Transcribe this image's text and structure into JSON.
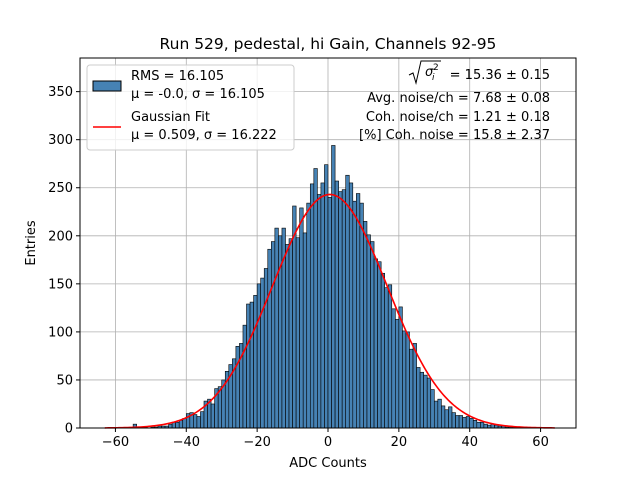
{
  "chart_data": {
    "type": "bar",
    "title": "Run 529, pedestal, hi Gain, Channels 92-95",
    "xlabel": "ADC Counts",
    "ylabel": "Entries",
    "xlim": [
      -70,
      70
    ],
    "ylim": [
      0,
      385
    ],
    "xticks": [
      -60,
      -40,
      -20,
      0,
      20,
      40,
      60
    ],
    "yticks": [
      0,
      50,
      100,
      150,
      200,
      250,
      300,
      350
    ],
    "grid": true,
    "bin_width": 1,
    "bar_color": "#4682b4",
    "fit_color": "#ff0000",
    "histogram": {
      "bin_lefts": [
        -63,
        -62,
        -61,
        -60,
        -59,
        -58,
        -57,
        -56,
        -55,
        -54,
        -53,
        -52,
        -51,
        -50,
        -49,
        -48,
        -47,
        -46,
        -45,
        -44,
        -43,
        -42,
        -41,
        -40,
        -39,
        -38,
        -37,
        -36,
        -35,
        -34,
        -33,
        -32,
        -31,
        -30,
        -29,
        -28,
        -27,
        -26,
        -25,
        -24,
        -23,
        -22,
        -21,
        -20,
        -19,
        -18,
        -17,
        -16,
        -15,
        -14,
        -13,
        -12,
        -11,
        -10,
        -9,
        -8,
        -7,
        -6,
        -5,
        -4,
        -3,
        -2,
        -1,
        0,
        1,
        2,
        3,
        4,
        5,
        6,
        7,
        8,
        9,
        10,
        11,
        12,
        13,
        14,
        15,
        16,
        17,
        18,
        19,
        20,
        21,
        22,
        23,
        24,
        25,
        26,
        27,
        28,
        29,
        30,
        31,
        32,
        33,
        34,
        35,
        36,
        37,
        38,
        39,
        40,
        41,
        42,
        43,
        44,
        45,
        46,
        47,
        48,
        49,
        50,
        51,
        52,
        53,
        54,
        55,
        56,
        57,
        58,
        59,
        60,
        61,
        62,
        63
      ],
      "counts": [
        0,
        0,
        0,
        0,
        0,
        0,
        0,
        0,
        4,
        1,
        0,
        1,
        0,
        1,
        1,
        2,
        2,
        2,
        4,
        6,
        6,
        8,
        10,
        15,
        16,
        14,
        12,
        17,
        28,
        30,
        25,
        41,
        43,
        50,
        59,
        66,
        72,
        85,
        88,
        107,
        129,
        131,
        138,
        150,
        156,
        166,
        186,
        194,
        208,
        200,
        208,
        191,
        197,
        231,
        198,
        229,
        203,
        234,
        254,
        270,
        243,
        255,
        274,
        240,
        294,
        257,
        246,
        248,
        263,
        255,
        236,
        244,
        234,
        215,
        201,
        194,
        176,
        173,
        161,
        146,
        149,
        124,
        113,
        126,
        101,
        100,
        82,
        88,
        63,
        58,
        55,
        52,
        40,
        28,
        30,
        23,
        19,
        22,
        16,
        13,
        13,
        11,
        12,
        10,
        8,
        6,
        6,
        4,
        3,
        4,
        3,
        2,
        2,
        1,
        1,
        1,
        0,
        0,
        1,
        0,
        0,
        0,
        0,
        0,
        0,
        0,
        0
      ]
    },
    "series": [
      {
        "name": "RMS = 16.105",
        "name_line2": "μ = -0.0, σ = 16.105",
        "kind": "histogram"
      },
      {
        "name": "Gaussian Fit",
        "name_line2": "μ = 0.509, σ = 16.222",
        "kind": "line",
        "mu": 0.509,
        "sigma": 16.222,
        "amplitude": 243,
        "x_range": [
          -63,
          64
        ]
      }
    ],
    "legend": {
      "placement": "top-left"
    },
    "annotations": {
      "sigma_value": "= 15.36 ± 0.15",
      "avg_noise": "Avg. noise/ch = 7.68 ± 0.08",
      "coh_noise": "Coh. noise/ch = 1.21 ± 0.18",
      "pct_coh_noise": "[%] Coh. noise = 15.8 ± 2.37"
    }
  }
}
